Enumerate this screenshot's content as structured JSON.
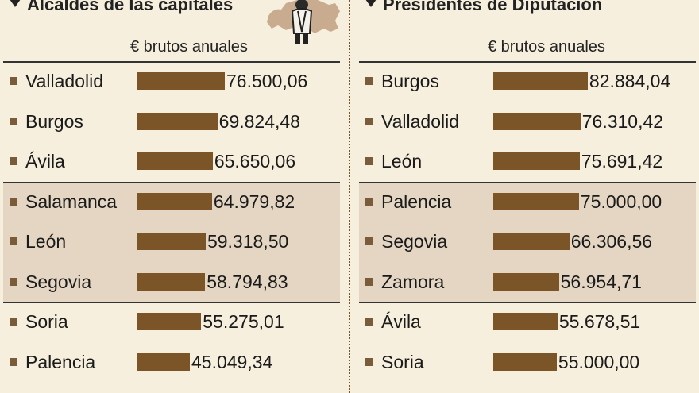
{
  "chart_data": [
    {
      "type": "bar",
      "title": "Alcaldes de las capitales",
      "subtitle": "€ brutos anuales",
      "categories": [
        "Valladolid",
        "Burgos",
        "Ávila",
        "Salamanca",
        "León",
        "Segovia",
        "Soria",
        "Palencia"
      ],
      "values": [
        76500.06,
        69824.48,
        65650.06,
        64979.82,
        59318.5,
        58794.83,
        55275.01,
        45049.34
      ],
      "value_labels": [
        "76.500,06",
        "69.824,48",
        "65.650,06",
        "64.979,82",
        "59.318,50",
        "58.794,83",
        "55.275,01",
        "45.049,34"
      ],
      "bar_color": "#7b5527"
    },
    {
      "type": "bar",
      "title": "Presidentes de Diputación",
      "subtitle": "€ brutos anuales",
      "categories": [
        "Burgos",
        "Valladolid",
        "León",
        "Palencia",
        "Segovia",
        "Zamora",
        "Ávila",
        "Soria"
      ],
      "values": [
        82884.04,
        76310.42,
        75691.42,
        75000.0,
        66306.56,
        56954.71,
        55678.51,
        55000.0
      ],
      "value_labels": [
        "82.884,04",
        "76.310,42",
        "75.691,42",
        "75.000,00",
        "66.306,56",
        "56.954,71",
        "55.678,51",
        "55.000,00"
      ],
      "bar_color": "#7b5527"
    }
  ],
  "colors": {
    "background": "#f6efdd",
    "band": "#e4d6c2",
    "bar": "#7b5527",
    "bullet": "#7a5c3a"
  }
}
